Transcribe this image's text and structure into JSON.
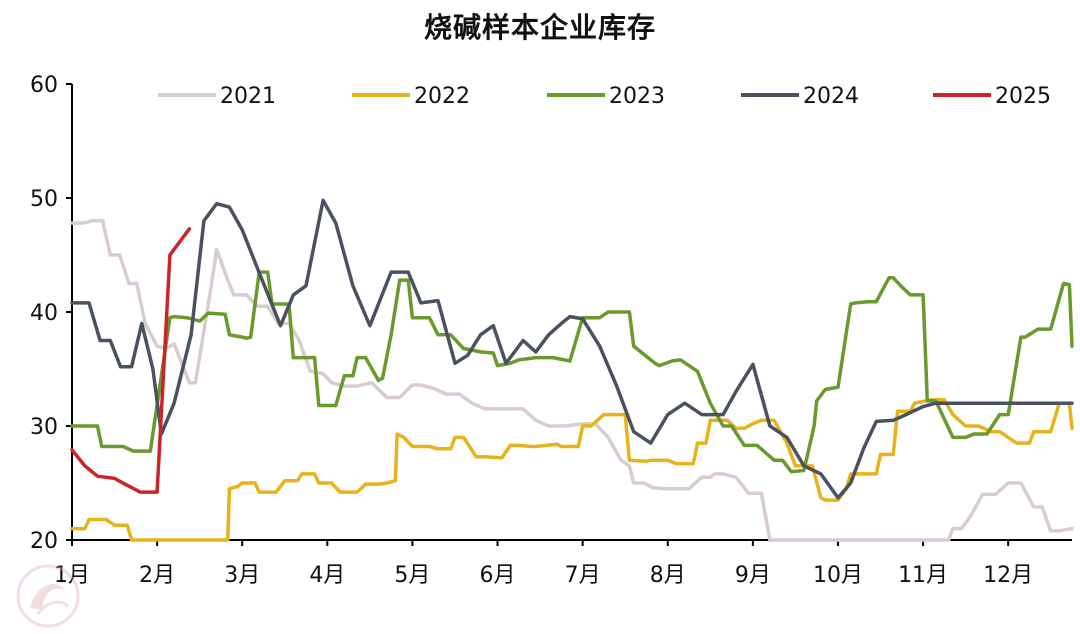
{
  "chart_data": {
    "type": "line",
    "title": "烧碱样本企业库存",
    "xlabel": "",
    "ylabel": "",
    "ylim": [
      20,
      60
    ],
    "xlim": [
      1,
      12.75
    ],
    "yticks": [
      20,
      30,
      40,
      50,
      60
    ],
    "xtick_labels": [
      "1月",
      "2月",
      "3月",
      "4月",
      "5月",
      "6月",
      "7月",
      "8月",
      "9月",
      "10月",
      "11月",
      "12月"
    ],
    "grid": false,
    "legend_position": "top",
    "series": [
      {
        "name": "2021",
        "color": "#d9cccc",
        "x": [
          1.0,
          1.13,
          1.24,
          1.36,
          1.45,
          1.56,
          1.67,
          1.76,
          1.86,
          2.0,
          2.1,
          2.2,
          2.38,
          2.45,
          2.63,
          2.7,
          2.82,
          2.9,
          3.05,
          3.18,
          3.3,
          3.42,
          3.55,
          3.67,
          3.8,
          3.95,
          4.05,
          4.2,
          4.35,
          4.52,
          4.7,
          4.85,
          5.0,
          5.1,
          5.25,
          5.4,
          5.55,
          5.7,
          5.85,
          6.0,
          6.15,
          6.3,
          6.45,
          6.6,
          6.8,
          7.0,
          7.15,
          7.3,
          7.45,
          7.55,
          7.6,
          7.72,
          7.82,
          7.95,
          8.1,
          8.25,
          8.4,
          8.5,
          8.55,
          8.65,
          8.8,
          8.95,
          9.1,
          9.2,
          9.28,
          9.3,
          11.3,
          11.35,
          11.45,
          11.55,
          11.7,
          11.85,
          12.0,
          12.15,
          12.3,
          12.4,
          12.5,
          12.6,
          12.75
        ],
        "y": [
          47.8,
          47.8,
          48.0,
          48.0,
          45.0,
          45.0,
          42.5,
          42.5,
          39.0,
          37.0,
          36.8,
          37.2,
          33.8,
          33.8,
          42.0,
          45.5,
          43.0,
          41.5,
          41.5,
          40.5,
          40.5,
          39.0,
          39.0,
          37.5,
          34.8,
          34.6,
          33.8,
          33.5,
          33.5,
          33.8,
          32.5,
          32.5,
          33.6,
          33.6,
          33.3,
          32.8,
          32.8,
          32.0,
          31.5,
          31.5,
          31.5,
          31.5,
          30.5,
          30.0,
          30.0,
          30.2,
          30.2,
          29.0,
          27.0,
          26.5,
          25.0,
          25.0,
          24.6,
          24.5,
          24.5,
          24.5,
          25.5,
          25.5,
          25.8,
          25.8,
          25.5,
          24.1,
          24.1,
          20.0,
          20.0,
          20.0,
          20.0,
          21.0,
          21.0,
          22.0,
          24.0,
          24.0,
          25.0,
          25.0,
          22.9,
          22.9,
          20.8,
          20.8,
          21.0
        ]
      },
      {
        "name": "2022",
        "color": "#e8b21a",
        "x": [
          1.0,
          1.15,
          1.2,
          1.4,
          1.5,
          1.65,
          1.7,
          1.9,
          2.0,
          2.83,
          2.85,
          2.95,
          3.0,
          3.15,
          3.2,
          3.4,
          3.5,
          3.65,
          3.7,
          3.85,
          3.9,
          4.05,
          4.15,
          4.35,
          4.45,
          4.6,
          4.7,
          4.8,
          4.82,
          4.9,
          5.0,
          5.2,
          5.3,
          5.45,
          5.5,
          5.6,
          5.75,
          5.85,
          6.05,
          6.15,
          6.25,
          6.4,
          6.45,
          6.7,
          6.75,
          6.95,
          7.0,
          7.1,
          7.25,
          7.32,
          7.5,
          7.55,
          7.75,
          7.8,
          8.0,
          8.1,
          8.3,
          8.35,
          8.45,
          8.5,
          8.6,
          8.7,
          8.8,
          8.9,
          9.0,
          9.1,
          9.25,
          9.4,
          9.5,
          9.7,
          9.8,
          9.85,
          10.0,
          10.1,
          10.15,
          10.3,
          10.45,
          10.5,
          10.65,
          10.7,
          10.85,
          10.9,
          11.1,
          11.25,
          11.35,
          11.5,
          11.65,
          11.8,
          11.9,
          12.1,
          12.25,
          12.3,
          12.5,
          12.6,
          12.72,
          12.75
        ],
        "y": [
          21.0,
          21.0,
          21.8,
          21.8,
          21.3,
          21.3,
          20.0,
          20.0,
          20.0,
          20.0,
          24.5,
          24.7,
          25.0,
          25.0,
          24.2,
          24.2,
          25.2,
          25.2,
          25.8,
          25.8,
          25.0,
          25.0,
          24.2,
          24.2,
          24.9,
          24.9,
          25.0,
          25.2,
          29.3,
          29.0,
          28.2,
          28.2,
          28.0,
          28.0,
          29.0,
          29.0,
          27.3,
          27.3,
          27.2,
          28.3,
          28.3,
          28.2,
          28.2,
          28.4,
          28.2,
          28.2,
          30.0,
          30.0,
          31.0,
          31.0,
          31.0,
          27.0,
          26.9,
          27.0,
          27.0,
          26.7,
          26.7,
          28.5,
          28.5,
          30.5,
          30.5,
          30.5,
          29.8,
          29.8,
          30.2,
          30.5,
          30.5,
          28.5,
          26.5,
          26.5,
          23.7,
          23.5,
          23.5,
          24.5,
          25.8,
          25.8,
          25.8,
          27.5,
          27.5,
          31.3,
          31.3,
          32.0,
          32.3,
          32.3,
          31.0,
          30.0,
          30.0,
          29.5,
          29.5,
          28.5,
          28.5,
          29.5,
          29.5,
          32.0,
          32.0,
          29.8
        ]
      },
      {
        "name": "2023",
        "color": "#6a9a2e",
        "x": [
          1.0,
          1.3,
          1.35,
          1.6,
          1.72,
          1.92,
          2.15,
          2.2,
          2.35,
          2.5,
          2.6,
          2.8,
          2.85,
          3.0,
          3.05,
          3.1,
          3.2,
          3.3,
          3.35,
          3.55,
          3.6,
          3.85,
          3.9,
          4.1,
          4.2,
          4.3,
          4.35,
          4.45,
          4.6,
          4.65,
          4.75,
          4.85,
          4.95,
          5.0,
          5.2,
          5.3,
          5.45,
          5.6,
          5.8,
          5.95,
          6.0,
          6.15,
          6.25,
          6.45,
          6.65,
          6.85,
          7.0,
          7.2,
          7.3,
          7.55,
          7.6,
          7.85,
          7.9,
          8.05,
          8.15,
          8.35,
          8.5,
          8.65,
          8.75,
          8.9,
          9.05,
          9.25,
          9.35,
          9.45,
          9.6,
          9.72,
          9.75,
          9.85,
          10.0,
          10.15,
          10.2,
          10.35,
          10.45,
          10.6,
          10.65,
          10.75,
          10.85,
          11.0,
          11.05,
          11.15,
          11.35,
          11.5,
          11.6,
          11.75,
          11.9,
          12.0,
          12.15,
          12.2,
          12.35,
          12.5,
          12.65,
          12.72,
          12.75
        ],
        "y": [
          30.0,
          30.0,
          28.2,
          28.2,
          27.8,
          27.8,
          39.5,
          39.6,
          39.5,
          39.2,
          39.9,
          39.8,
          38.0,
          37.8,
          37.7,
          37.8,
          43.5,
          43.5,
          40.7,
          40.7,
          36.0,
          36.0,
          31.8,
          31.8,
          34.4,
          34.4,
          36.0,
          36.0,
          34.0,
          34.2,
          38.0,
          42.8,
          42.8,
          39.5,
          39.5,
          38.0,
          38.0,
          36.8,
          36.5,
          36.4,
          35.3,
          35.5,
          35.8,
          36.0,
          36.0,
          35.7,
          39.5,
          39.5,
          40.0,
          40.0,
          37.0,
          35.5,
          35.3,
          35.7,
          35.8,
          34.8,
          32.0,
          30.0,
          30.0,
          28.3,
          28.3,
          27.0,
          27.0,
          26.0,
          26.1,
          30.0,
          32.2,
          33.2,
          33.4,
          40.7,
          40.8,
          40.9,
          40.9,
          43.0,
          43.0,
          42.2,
          41.5,
          41.5,
          32.2,
          32.2,
          29.0,
          29.0,
          29.3,
          29.3,
          31.0,
          31.0,
          37.8,
          37.8,
          38.5,
          38.5,
          42.5,
          42.4,
          37.0
        ]
      },
      {
        "name": "2024",
        "color": "#4a5261",
        "x": [
          1.0,
          1.08,
          1.2,
          1.33,
          1.45,
          1.57,
          1.7,
          1.82,
          1.95,
          2.05,
          2.2,
          2.4,
          2.55,
          2.7,
          2.85,
          3.0,
          3.25,
          3.45,
          3.6,
          3.75,
          3.95,
          4.1,
          4.3,
          4.5,
          4.75,
          4.95,
          5.1,
          5.3,
          5.5,
          5.65,
          5.8,
          5.95,
          6.1,
          6.3,
          6.45,
          6.6,
          6.75,
          6.85,
          7.0,
          7.2,
          7.4,
          7.6,
          7.8,
          8.0,
          8.2,
          8.4,
          8.65,
          8.8,
          9.0,
          9.2,
          9.4,
          9.6,
          9.8,
          10.0,
          10.15,
          10.3,
          10.45,
          10.65,
          10.8,
          11.0,
          11.15,
          11.3,
          11.5,
          11.65,
          11.8,
          12.0,
          12.2,
          12.4,
          12.55,
          12.75
        ],
        "y": [
          40.8,
          40.8,
          40.8,
          37.5,
          37.5,
          35.2,
          35.2,
          39.0,
          35.0,
          29.3,
          32.0,
          38.0,
          48.0,
          49.5,
          49.2,
          47.2,
          42.5,
          38.8,
          41.5,
          42.3,
          49.8,
          47.8,
          42.3,
          38.8,
          43.5,
          43.5,
          40.8,
          41.0,
          35.5,
          36.2,
          38.0,
          38.8,
          35.5,
          37.5,
          36.5,
          38.0,
          39.0,
          39.6,
          39.4,
          37.0,
          33.5,
          29.5,
          28.5,
          31.0,
          32.0,
          31.0,
          31.0,
          33.0,
          35.4,
          30.0,
          29.0,
          26.5,
          25.8,
          23.7,
          25.0,
          28.0,
          30.4,
          30.5,
          31.0,
          31.7,
          32.0,
          32.0,
          32.0,
          32.0,
          32.0,
          32.0,
          32.0,
          32.0,
          32.0,
          32.0
        ]
      },
      {
        "name": "2025",
        "color": "#c8262a",
        "x": [
          1.0,
          1.15,
          1.3,
          1.5,
          1.65,
          1.8,
          1.95,
          2.0,
          2.15,
          2.3,
          2.38
        ],
        "y": [
          27.9,
          26.5,
          25.6,
          25.4,
          24.8,
          24.2,
          24.2,
          24.2,
          45.0,
          46.5,
          47.3
        ]
      }
    ]
  }
}
